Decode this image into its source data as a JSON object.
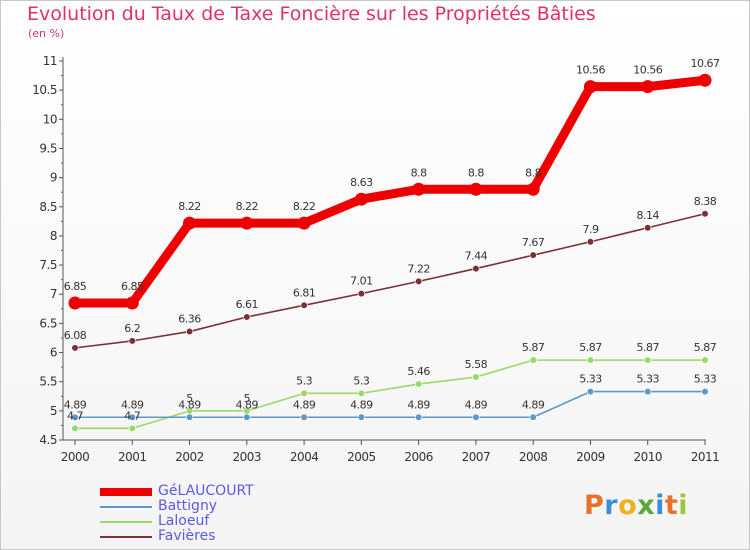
{
  "chart_data": {
    "type": "line",
    "title": "Evolution du Taux de Taxe Foncière sur les Propriétés Bâties",
    "subtitle": "(en %)",
    "ylim": [
      4.5,
      11
    ],
    "y_ticks": [
      "4.5",
      "5",
      "5.5",
      "6",
      "6.5",
      "7",
      "7.5",
      "8",
      "8.5",
      "9",
      "9.5",
      "10",
      "10.5",
      "11"
    ],
    "x": [
      "2000",
      "2001",
      "2002",
      "2003",
      "2004",
      "2005",
      "2006",
      "2007",
      "2008",
      "2009",
      "2010",
      "2011"
    ],
    "series": [
      {
        "name": "GéLAUCOURT",
        "color": "#ee0000",
        "values": [
          6.85,
          6.85,
          8.22,
          8.22,
          8.22,
          8.63,
          8.8,
          8.8,
          8.8,
          10.56,
          10.56,
          10.67
        ],
        "labels": [
          "6.85",
          "6.85",
          "8.22",
          "8.22",
          "8.22",
          "8.63",
          "8.8",
          "8.8",
          "8.8",
          "10.56",
          "10.56",
          "10.67"
        ]
      },
      {
        "name": "Battigny",
        "color": "#5e98c8",
        "values": [
          4.89,
          4.89,
          4.89,
          4.89,
          4.89,
          4.89,
          4.89,
          4.89,
          4.89,
          5.33,
          5.33,
          5.33
        ],
        "labels": [
          "4.89",
          "4.89",
          "4.89",
          "4.89",
          "4.89",
          "4.89",
          "4.89",
          "4.89",
          "4.89",
          "5.33",
          "5.33",
          "5.33"
        ]
      },
      {
        "name": "Laloeuf",
        "color": "#9ad868",
        "values": [
          4.7,
          4.7,
          5,
          5,
          5.3,
          5.3,
          5.46,
          5.58,
          5.87,
          5.87,
          5.87,
          5.87
        ],
        "labels": [
          "4.7",
          "4.7",
          "5",
          "5",
          "5.3",
          "5.3",
          "5.46",
          "5.58",
          "5.87",
          "5.87",
          "5.87",
          "5.87"
        ]
      },
      {
        "name": "Favières",
        "color": "#7a3038",
        "values": [
          6.08,
          6.2,
          6.36,
          6.61,
          6.81,
          7.01,
          7.22,
          7.44,
          7.67,
          7.9,
          8.14,
          8.38
        ],
        "labels": [
          "6.08",
          "6.2",
          "6.36",
          "6.61",
          "6.81",
          "7.01",
          "7.22",
          "7.44",
          "7.67",
          "7.9",
          "8.14",
          "8.38"
        ]
      }
    ],
    "legend_position": "bottom-left"
  },
  "logo": {
    "text": "Proxiti",
    "colors": [
      "#e8722a",
      "#3a8fd8",
      "#f0b020",
      "#5aa838",
      "#3a8fd8",
      "#e8722a",
      "#9ac838"
    ]
  }
}
